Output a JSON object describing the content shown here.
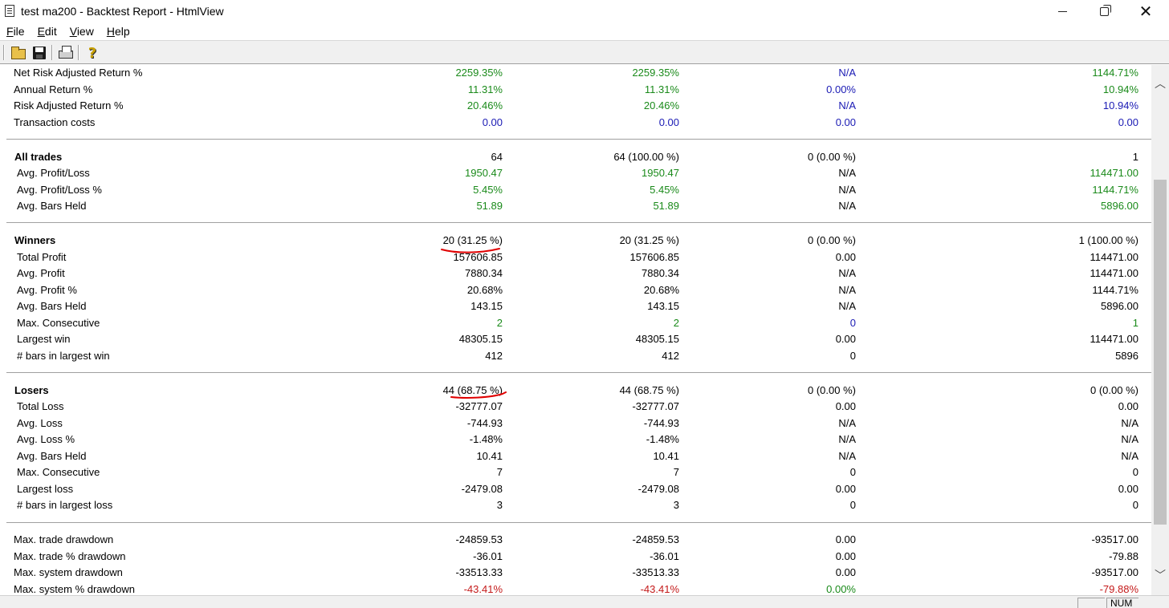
{
  "window": {
    "title": "test ma200 - Backtest Report - HtmlView"
  },
  "menu": {
    "items": [
      {
        "label": "File",
        "accel": "F",
        "rest": "ile"
      },
      {
        "label": "Edit",
        "accel": "E",
        "rest": "dit"
      },
      {
        "label": "View",
        "accel": "V",
        "rest": "iew"
      },
      {
        "label": "Help",
        "accel": "H",
        "rest": "elp"
      }
    ]
  },
  "toolbar": {
    "icons": [
      "open-folder-icon",
      "save-disk-icon",
      "print-icon",
      "help-icon"
    ]
  },
  "report": {
    "rows": [
      {
        "label": "Net Risk Adjusted Return %",
        "vals": [
          "2259.35%",
          "2259.35%",
          "N/A",
          "1144.71%"
        ],
        "colors": [
          "green",
          "green",
          "blue",
          "green"
        ]
      },
      {
        "label": "Annual Return %",
        "vals": [
          "11.31%",
          "11.31%",
          "0.00%",
          "10.94%"
        ],
        "colors": [
          "green",
          "green",
          "blue",
          "green"
        ]
      },
      {
        "label": "Risk Adjusted Return %",
        "vals": [
          "20.46%",
          "20.46%",
          "N/A",
          "10.94%"
        ],
        "colors": [
          "green",
          "green",
          "blue",
          "blue"
        ]
      },
      {
        "label": "Transaction costs",
        "vals": [
          "0.00",
          "0.00",
          "0.00",
          "0.00"
        ],
        "colors": [
          "blue",
          "blue",
          "blue",
          "blue"
        ]
      },
      {
        "label": "All trades",
        "vals": [
          "64",
          "64 (100.00 %)",
          "0 (0.00 %)",
          "1"
        ],
        "colors": [
          "black",
          "black",
          "black",
          "black"
        ],
        "bold": true
      },
      {
        "label": "Avg. Profit/Loss",
        "vals": [
          "1950.47",
          "1950.47",
          "N/A",
          "114471.00"
        ],
        "colors": [
          "green",
          "green",
          "black",
          "green"
        ]
      },
      {
        "label": "Avg. Profit/Loss %",
        "vals": [
          "5.45%",
          "5.45%",
          "N/A",
          "1144.71%"
        ],
        "colors": [
          "green",
          "green",
          "black",
          "green"
        ]
      },
      {
        "label": "Avg. Bars Held",
        "vals": [
          "51.89",
          "51.89",
          "N/A",
          "5896.00"
        ],
        "colors": [
          "green",
          "green",
          "black",
          "green"
        ]
      },
      {
        "label": "Winners",
        "vals": [
          "20 (31.25 %)",
          "20 (31.25 %)",
          "0 (0.00 %)",
          "1 (100.00 %)"
        ],
        "colors": [
          "black",
          "black",
          "black",
          "black"
        ],
        "bold": true
      },
      {
        "label": "Total Profit",
        "vals": [
          "157606.85",
          "157606.85",
          "0.00",
          "114471.00"
        ],
        "colors": [
          "black",
          "black",
          "black",
          "black"
        ]
      },
      {
        "label": "Avg. Profit",
        "vals": [
          "7880.34",
          "7880.34",
          "N/A",
          "114471.00"
        ],
        "colors": [
          "black",
          "black",
          "black",
          "black"
        ]
      },
      {
        "label": "Avg. Profit %",
        "vals": [
          "20.68%",
          "20.68%",
          "N/A",
          "1144.71%"
        ],
        "colors": [
          "black",
          "black",
          "black",
          "black"
        ]
      },
      {
        "label": "Avg. Bars Held",
        "vals": [
          "143.15",
          "143.15",
          "N/A",
          "5896.00"
        ],
        "colors": [
          "black",
          "black",
          "black",
          "black"
        ]
      },
      {
        "label": "Max. Consecutive",
        "vals": [
          "2",
          "2",
          "0",
          "1"
        ],
        "colors": [
          "green",
          "green",
          "blue",
          "green"
        ]
      },
      {
        "label": "Largest win",
        "vals": [
          "48305.15",
          "48305.15",
          "0.00",
          "114471.00"
        ],
        "colors": [
          "black",
          "black",
          "black",
          "black"
        ]
      },
      {
        "label": "# bars in largest win",
        "vals": [
          "412",
          "412",
          "0",
          "5896"
        ],
        "colors": [
          "black",
          "black",
          "black",
          "black"
        ]
      },
      {
        "label": "Losers",
        "vals": [
          "44 (68.75 %)",
          "44 (68.75 %)",
          "0 (0.00 %)",
          "0 (0.00 %)"
        ],
        "colors": [
          "black",
          "black",
          "black",
          "black"
        ],
        "bold": true
      },
      {
        "label": "Total Loss",
        "vals": [
          "-32777.07",
          "-32777.07",
          "0.00",
          "0.00"
        ],
        "colors": [
          "black",
          "black",
          "black",
          "black"
        ]
      },
      {
        "label": "Avg. Loss",
        "vals": [
          "-744.93",
          "-744.93",
          "N/A",
          "N/A"
        ],
        "colors": [
          "black",
          "black",
          "black",
          "black"
        ]
      },
      {
        "label": "Avg. Loss %",
        "vals": [
          "-1.48%",
          "-1.48%",
          "N/A",
          "N/A"
        ],
        "colors": [
          "black",
          "black",
          "black",
          "black"
        ]
      },
      {
        "label": "Avg. Bars Held",
        "vals": [
          "10.41",
          "10.41",
          "N/A",
          "N/A"
        ],
        "colors": [
          "black",
          "black",
          "black",
          "black"
        ]
      },
      {
        "label": "Max. Consecutive",
        "vals": [
          "7",
          "7",
          "0",
          "0"
        ],
        "colors": [
          "black",
          "black",
          "black",
          "black"
        ]
      },
      {
        "label": "Largest loss",
        "vals": [
          "-2479.08",
          "-2479.08",
          "0.00",
          "0.00"
        ],
        "colors": [
          "black",
          "black",
          "black",
          "black"
        ]
      },
      {
        "label": "# bars in largest loss",
        "vals": [
          "3",
          "3",
          "0",
          "0"
        ],
        "colors": [
          "black",
          "black",
          "black",
          "black"
        ]
      },
      {
        "label": "Max. trade drawdown",
        "vals": [
          "-24859.53",
          "-24859.53",
          "0.00",
          "-93517.00"
        ],
        "colors": [
          "black",
          "black",
          "black",
          "black"
        ]
      },
      {
        "label": "Max. trade % drawdown",
        "vals": [
          "-36.01",
          "-36.01",
          "0.00",
          "-79.88"
        ],
        "colors": [
          "black",
          "black",
          "black",
          "black"
        ]
      },
      {
        "label": "Max. system drawdown",
        "vals": [
          "-33513.33",
          "-33513.33",
          "0.00",
          "-93517.00"
        ],
        "colors": [
          "black",
          "black",
          "black",
          "black"
        ]
      },
      {
        "label": "Max. system % drawdown",
        "vals": [
          "-43.41%",
          "-43.41%",
          "0.00%",
          "-79.88%"
        ],
        "colors": [
          "red",
          "red",
          "green",
          "red"
        ]
      }
    ]
  },
  "statusbar": {
    "num": "NUM"
  },
  "colors": {
    "green": "#1a8a1a",
    "blue": "#1a1ab4",
    "red": "#c41a1a",
    "annotation": "#e00000"
  }
}
